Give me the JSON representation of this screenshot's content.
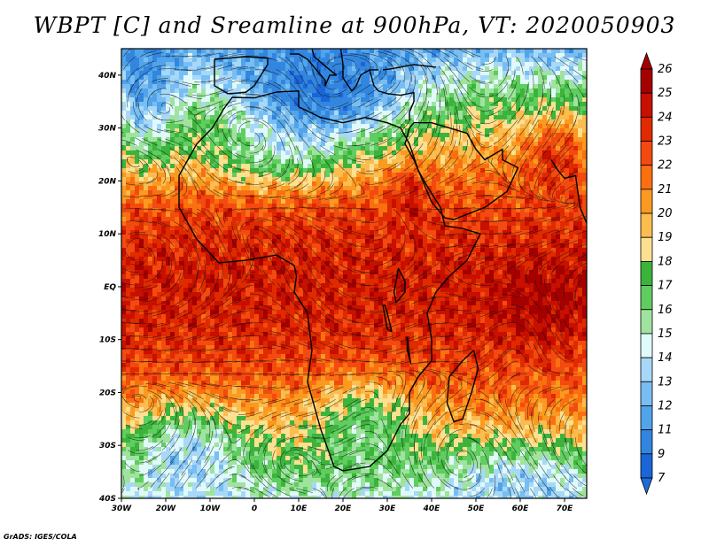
{
  "title": "WBPT [C] and Sreamline at 900hPa, VT: 2020050903",
  "credit": "GrADS: IGES/COLA",
  "map": {
    "lon_range": [
      -30,
      75
    ],
    "lat_range": [
      -40,
      45
    ],
    "lon_ticks": [
      {
        "value": -30,
        "label": "30W"
      },
      {
        "value": -20,
        "label": "20W"
      },
      {
        "value": -10,
        "label": "10W"
      },
      {
        "value": 0,
        "label": "0"
      },
      {
        "value": 10,
        "label": "10E"
      },
      {
        "value": 20,
        "label": "20E"
      },
      {
        "value": 30,
        "label": "30E"
      },
      {
        "value": 40,
        "label": "40E"
      },
      {
        "value": 50,
        "label": "50E"
      },
      {
        "value": 60,
        "label": "60E"
      },
      {
        "value": 70,
        "label": "70E"
      }
    ],
    "lat_ticks": [
      {
        "value": 40,
        "label": "40N"
      },
      {
        "value": 30,
        "label": "30N"
      },
      {
        "value": 20,
        "label": "20N"
      },
      {
        "value": 10,
        "label": "10N"
      },
      {
        "value": 0,
        "label": "EQ"
      },
      {
        "value": -10,
        "label": "10S"
      },
      {
        "value": -20,
        "label": "20S"
      },
      {
        "value": -30,
        "label": "30S"
      },
      {
        "value": -40,
        "label": "40S"
      }
    ]
  },
  "colorbar": {
    "labels": [
      "26",
      "25",
      "24",
      "23",
      "22",
      "21",
      "20",
      "19",
      "18",
      "17",
      "16",
      "15",
      "14",
      "13",
      "12",
      "11",
      "9",
      "7"
    ],
    "colors": [
      "#a50000",
      "#c81000",
      "#e02a00",
      "#f24a10",
      "#fa7010",
      "#fa9a20",
      "#fbbc50",
      "#fde090",
      "#3cb43c",
      "#5fcd5f",
      "#9fe39f",
      "#e0fafa",
      "#a8d8f8",
      "#78bef2",
      "#52a4ea",
      "#3286e0",
      "#1a66d8"
    ],
    "top_color": "#a50000",
    "bottom_color": "#1e6cd8"
  }
}
